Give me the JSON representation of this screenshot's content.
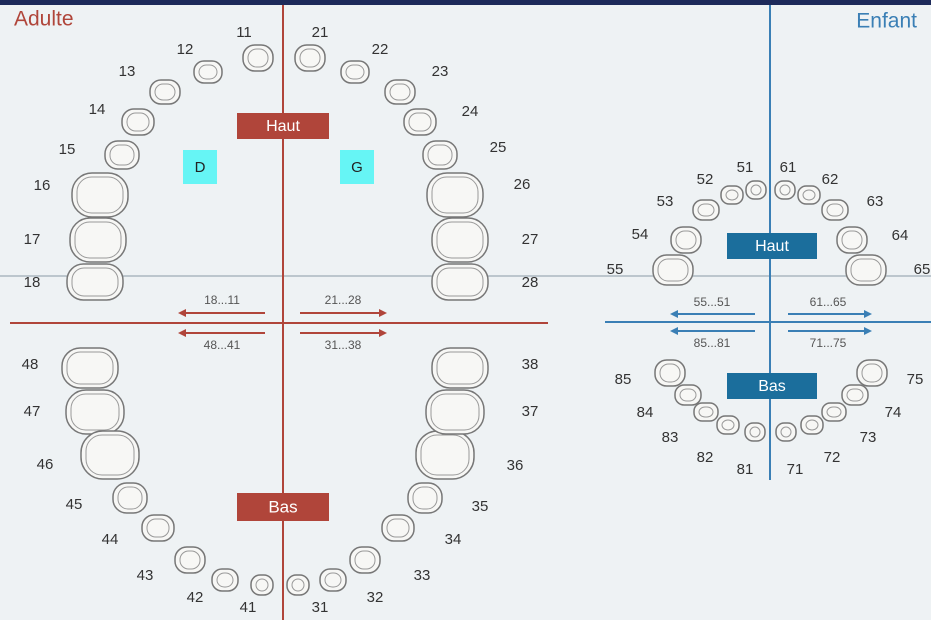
{
  "adult": {
    "title": "Adulte",
    "upper": "Haut",
    "lower": "Bas",
    "right": "D",
    "left": "G",
    "ranges": [
      "18...11",
      "21...28",
      "48...41",
      "31...38"
    ],
    "teeth": [
      11,
      12,
      13,
      14,
      15,
      16,
      17,
      18,
      21,
      22,
      23,
      24,
      25,
      26,
      27,
      28,
      48,
      47,
      46,
      45,
      44,
      43,
      42,
      41,
      31,
      32,
      33,
      34,
      35,
      36,
      37,
      38
    ]
  },
  "child": {
    "title": "Enfant",
    "upper": "Haut",
    "lower": "Bas",
    "ranges": [
      "55...51",
      "61...65",
      "85...81",
      "71...75"
    ],
    "teeth": [
      51,
      52,
      53,
      54,
      55,
      61,
      62,
      63,
      64,
      65,
      85,
      84,
      83,
      82,
      81,
      75,
      74,
      73,
      72,
      71
    ]
  }
}
